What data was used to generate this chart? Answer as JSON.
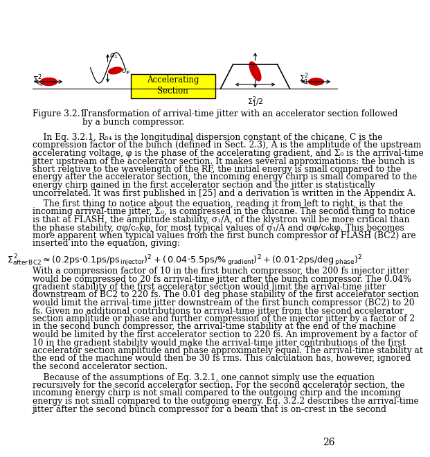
{
  "page_number": "26",
  "bg_color": "#ffffff",
  "text_color": "#000000",
  "font_size": 8.8,
  "fig_caption_line1": "Figure 3.2.1    Transformation of arrival-time jitter with an accelerator section followed",
  "fig_caption_line2": "                        by a bunch compressor.",
  "para1_lines": [
    "    In Eq. 3.2.1, R₅₄ is the longitudinal dispersion constant of the chicane, C is the",
    "compression factor of the bunch (defined in Sect. 2.3), A is the amplitude of the upstream",
    "accelerating voltage, φ is the phase of the accelerating gradient, and Σ₀ is the arrival-time",
    "jitter upstream of the accelerator section. It makes several approximations: the bunch is",
    "short relative to the wavelength of the RF, the initial energy is small compared to the",
    "energy after the accelerator section, the incoming energy chirp is small compared to the",
    "energy chirp gained in the first accelerator section and the jitter is statistically",
    "uncorrelated. It was first published in [25] and a derivation is written in the Appendix A."
  ],
  "para2_lines": [
    "    The first thing to notice about the equation, reading it from left to right, is that the",
    "incoming arrival-time jitter, Σ₀, is compressed in the chicane. The second thing to notice",
    "is that at FLASH, the amplitude stability, σ₁/A, of the klystron will be more critical than",
    "the phase stability, σφ/c₀kφ, for most typical values of σ₁/A and σφ/c₀kφ. This becomes",
    "more apparent when typical values from the first bunch compressor of FLASH (BC2) are",
    "inserted into the equation, giving:"
  ],
  "para3_lines": [
    "With a compression factor of 10 in the first bunch compressor, the 200 fs injector jitter",
    "would be compressed to 20 fs arrival-time jitter after the bunch compressor. The 0.04%",
    "gradient stability of the first accelerator section would limit the arrival-time jitter",
    "downstream of BC2 to 220 fs. The 0.01 deg phase stability of the first accelerator section",
    "would limit the arrival-time jitter downstream of the first bunch compressor (BC2) to 20",
    "fs. Given no additional contributions to arrival-time jitter from the second accelerator",
    "section amplitude or phase and further compression of the injector jitter by a factor of 2",
    "in the second bunch compressor, the arrival-time stability at the end of the machine",
    "would be limited by the first accelerator section to 220 fs. An improvement by a factor of",
    "10 in the gradient stability would make the arrival-time jitter contributions of the first",
    "accelerator section amplitude and phase approximately equal. The arrival-time stability at",
    "the end of the machine would then be 30 fs rms. This calculation has, however, ignored",
    "the second accelerator section."
  ],
  "para4_lines": [
    "    Because of the assumptions of Eq. 3.2.1, one cannot simply use the equation",
    "recursively for the second accelerator section. For the second accelerator section, the",
    "incoming energy chirp is not small compared to the outgoing chirp and the incoming",
    "energy is not small compared to the outgoing energy. Eq. 3.2.2 describes the arrival-time",
    "jitter after the second bunch compressor for a beam that is on-crest in the second"
  ],
  "accel_box_color": "#FFFF00",
  "beam_color": "#cc0000",
  "line_color": "#000000"
}
